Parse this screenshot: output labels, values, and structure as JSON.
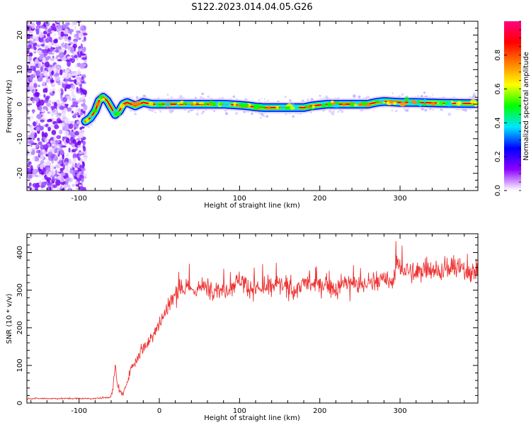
{
  "figure": {
    "title": "S122.2023.014.04.05.G26"
  },
  "chart_data": [
    {
      "type": "heatmap",
      "title": "S122.2023.014.04.05.G26",
      "xlabel": "Height of straight line (km)",
      "ylabel": "Frequency (Hz)",
      "xlim": [
        -165,
        397
      ],
      "ylim": [
        -25,
        24
      ],
      "x_ticks": [
        -100,
        0,
        100,
        200,
        300
      ],
      "y_ticks": [
        -20,
        -10,
        0,
        10,
        20
      ],
      "grid": false,
      "noise_region_x": [
        -165,
        -92
      ],
      "ridge": {
        "x": [
          -92,
          -86,
          -80,
          -75,
          -70,
          -65,
          -60,
          -55,
          -50,
          -45,
          -40,
          -35,
          -30,
          -20,
          -10,
          0,
          20,
          50,
          80,
          100,
          110,
          120,
          130,
          150,
          170,
          180,
          190,
          210,
          240,
          260,
          270,
          280,
          300,
          320,
          350,
          380,
          397
        ],
        "y": [
          -5,
          -4,
          -2,
          1,
          2,
          1,
          -1,
          -3,
          -2,
          0,
          0.5,
          0,
          -0.5,
          0.5,
          0,
          0,
          0,
          0,
          0,
          -0.3,
          -0.5,
          -0.8,
          -1,
          -1,
          -1,
          -1,
          -0.5,
          0,
          0,
          0,
          0.5,
          0.8,
          0.5,
          0.5,
          0.3,
          0.2,
          0.2
        ]
      },
      "colorbar": {
        "label": "Normalized spectral amplitude",
        "range": [
          0,
          1
        ],
        "ticks": [
          0.0,
          0.2,
          0.4,
          0.6,
          0.8
        ],
        "tick_labels": [
          "0.0",
          "0.2",
          "0.4",
          "0.6",
          "0.8"
        ],
        "colors": [
          "#ffffff",
          "#8c00ff",
          "#0000ff",
          "#00e5ff",
          "#00ff00",
          "#ffff00",
          "#ff8000",
          "#ff0000",
          "#ff0080"
        ]
      }
    },
    {
      "type": "line",
      "xlabel": "Height of straight line (km)",
      "ylabel": "SNR (10 * v/v)",
      "xlim": [
        -165,
        397
      ],
      "ylim": [
        0,
        450
      ],
      "x_ticks": [
        -100,
        0,
        100,
        200,
        300
      ],
      "y_ticks": [
        0,
        100,
        200,
        300,
        400
      ],
      "grid": false,
      "line_color": "#ee3333",
      "series": [
        {
          "x": [
            -165,
            -140,
            -120,
            -100,
            -80,
            -70,
            -62,
            -58,
            -55,
            -52,
            -48,
            -45,
            -40,
            -35,
            -30,
            -25,
            -20,
            -15,
            -10,
            -5,
            0,
            5,
            10,
            15,
            20,
            25,
            30,
            40,
            50,
            60,
            70,
            80,
            90,
            100,
            110,
            120,
            130,
            140,
            150,
            160,
            170,
            180,
            190,
            200,
            210,
            220,
            230,
            240,
            250,
            260,
            270,
            280,
            290,
            295,
            300,
            310,
            320,
            330,
            340,
            350,
            360,
            370,
            380,
            390,
            397
          ],
          "y": [
            12,
            12,
            12,
            12,
            12,
            14,
            15,
            30,
            100,
            40,
            30,
            20,
            60,
            95,
            110,
            130,
            150,
            155,
            180,
            200,
            210,
            230,
            255,
            270,
            290,
            300,
            305,
            300,
            305,
            310,
            305,
            300,
            310,
            330,
            310,
            305,
            300,
            310,
            315,
            305,
            300,
            320,
            315,
            310,
            320,
            300,
            320,
            320,
            310,
            320,
            325,
            325,
            320,
            370,
            360,
            350,
            340,
            360,
            360,
            350,
            355,
            360,
            350,
            350,
            345
          ]
        }
      ]
    }
  ]
}
